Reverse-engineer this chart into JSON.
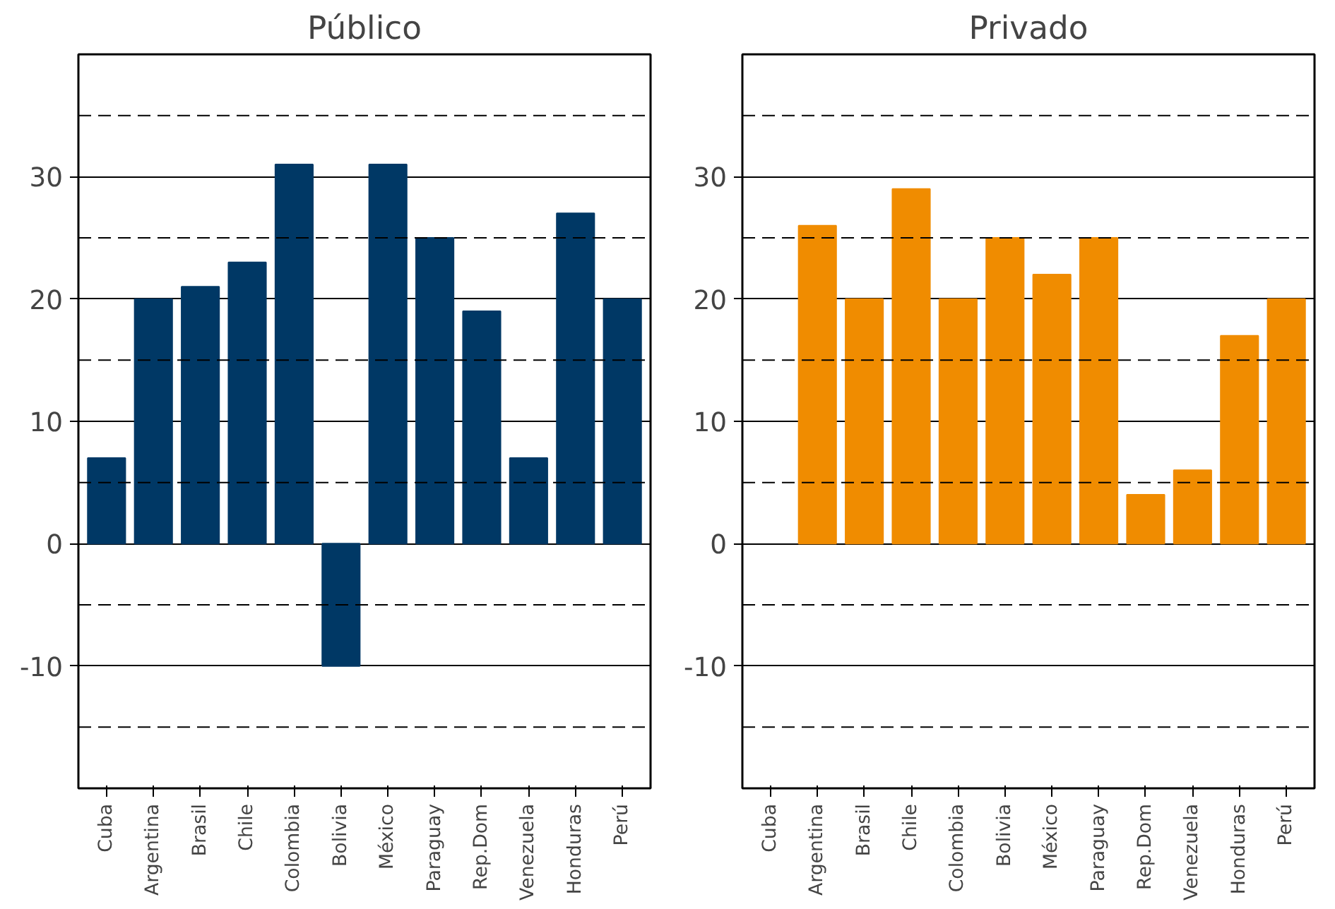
{
  "chart_data": [
    {
      "type": "bar",
      "title": "Público",
      "categories": [
        "Cuba",
        "Argentina",
        "Brasil",
        "Chile",
        "Colombia",
        "Bolivia",
        "México",
        "Paraguay",
        "Rep.Dom",
        "Venezuela",
        "Honduras",
        "Perú"
      ],
      "series": [
        {
          "color": "#003865",
          "values": [
            7,
            20,
            21,
            23,
            31,
            -10,
            31,
            25,
            19,
            7,
            27,
            20
          ]
        }
      ],
      "ylim": [
        -20,
        40
      ],
      "yticks": [
        30,
        20,
        10,
        0,
        -10
      ],
      "grid": "y",
      "ref_lines": [
        {
          "axis": "y",
          "value": 35,
          "line_style": "dashed"
        },
        {
          "axis": "y",
          "value": 25,
          "line_style": "dashed"
        },
        {
          "axis": "y",
          "value": 15,
          "line_style": "dashed"
        },
        {
          "axis": "y",
          "value": 5,
          "line_style": "dashed"
        },
        {
          "axis": "y",
          "value": -5,
          "line_style": "dashed"
        },
        {
          "axis": "y",
          "value": -15,
          "line_style": "dashed"
        }
      ]
    },
    {
      "type": "bar",
      "title": "Privado",
      "categories": [
        "Cuba",
        "Argentina",
        "Brasil",
        "Chile",
        "Colombia",
        "Bolivia",
        "México",
        "Paraguay",
        "Rep.Dom",
        "Venezuela",
        "Honduras",
        "Perú"
      ],
      "series": [
        {
          "color": "#f08c00",
          "values": [
            null,
            26,
            20,
            29,
            20,
            25,
            22,
            25,
            4,
            6,
            17,
            20
          ]
        }
      ],
      "ylim": [
        -20,
        40
      ],
      "yticks": [
        30,
        20,
        10,
        0,
        -10
      ],
      "grid": "y",
      "ref_lines": [
        {
          "axis": "y",
          "value": 35,
          "line_style": "dashed"
        },
        {
          "axis": "y",
          "value": 25,
          "line_style": "dashed"
        },
        {
          "axis": "y",
          "value": 15,
          "line_style": "dashed"
        },
        {
          "axis": "y",
          "value": 5,
          "line_style": "dashed"
        },
        {
          "axis": "y",
          "value": -5,
          "line_style": "dashed"
        },
        {
          "axis": "y",
          "value": -15,
          "line_style": "dashed"
        }
      ]
    }
  ]
}
